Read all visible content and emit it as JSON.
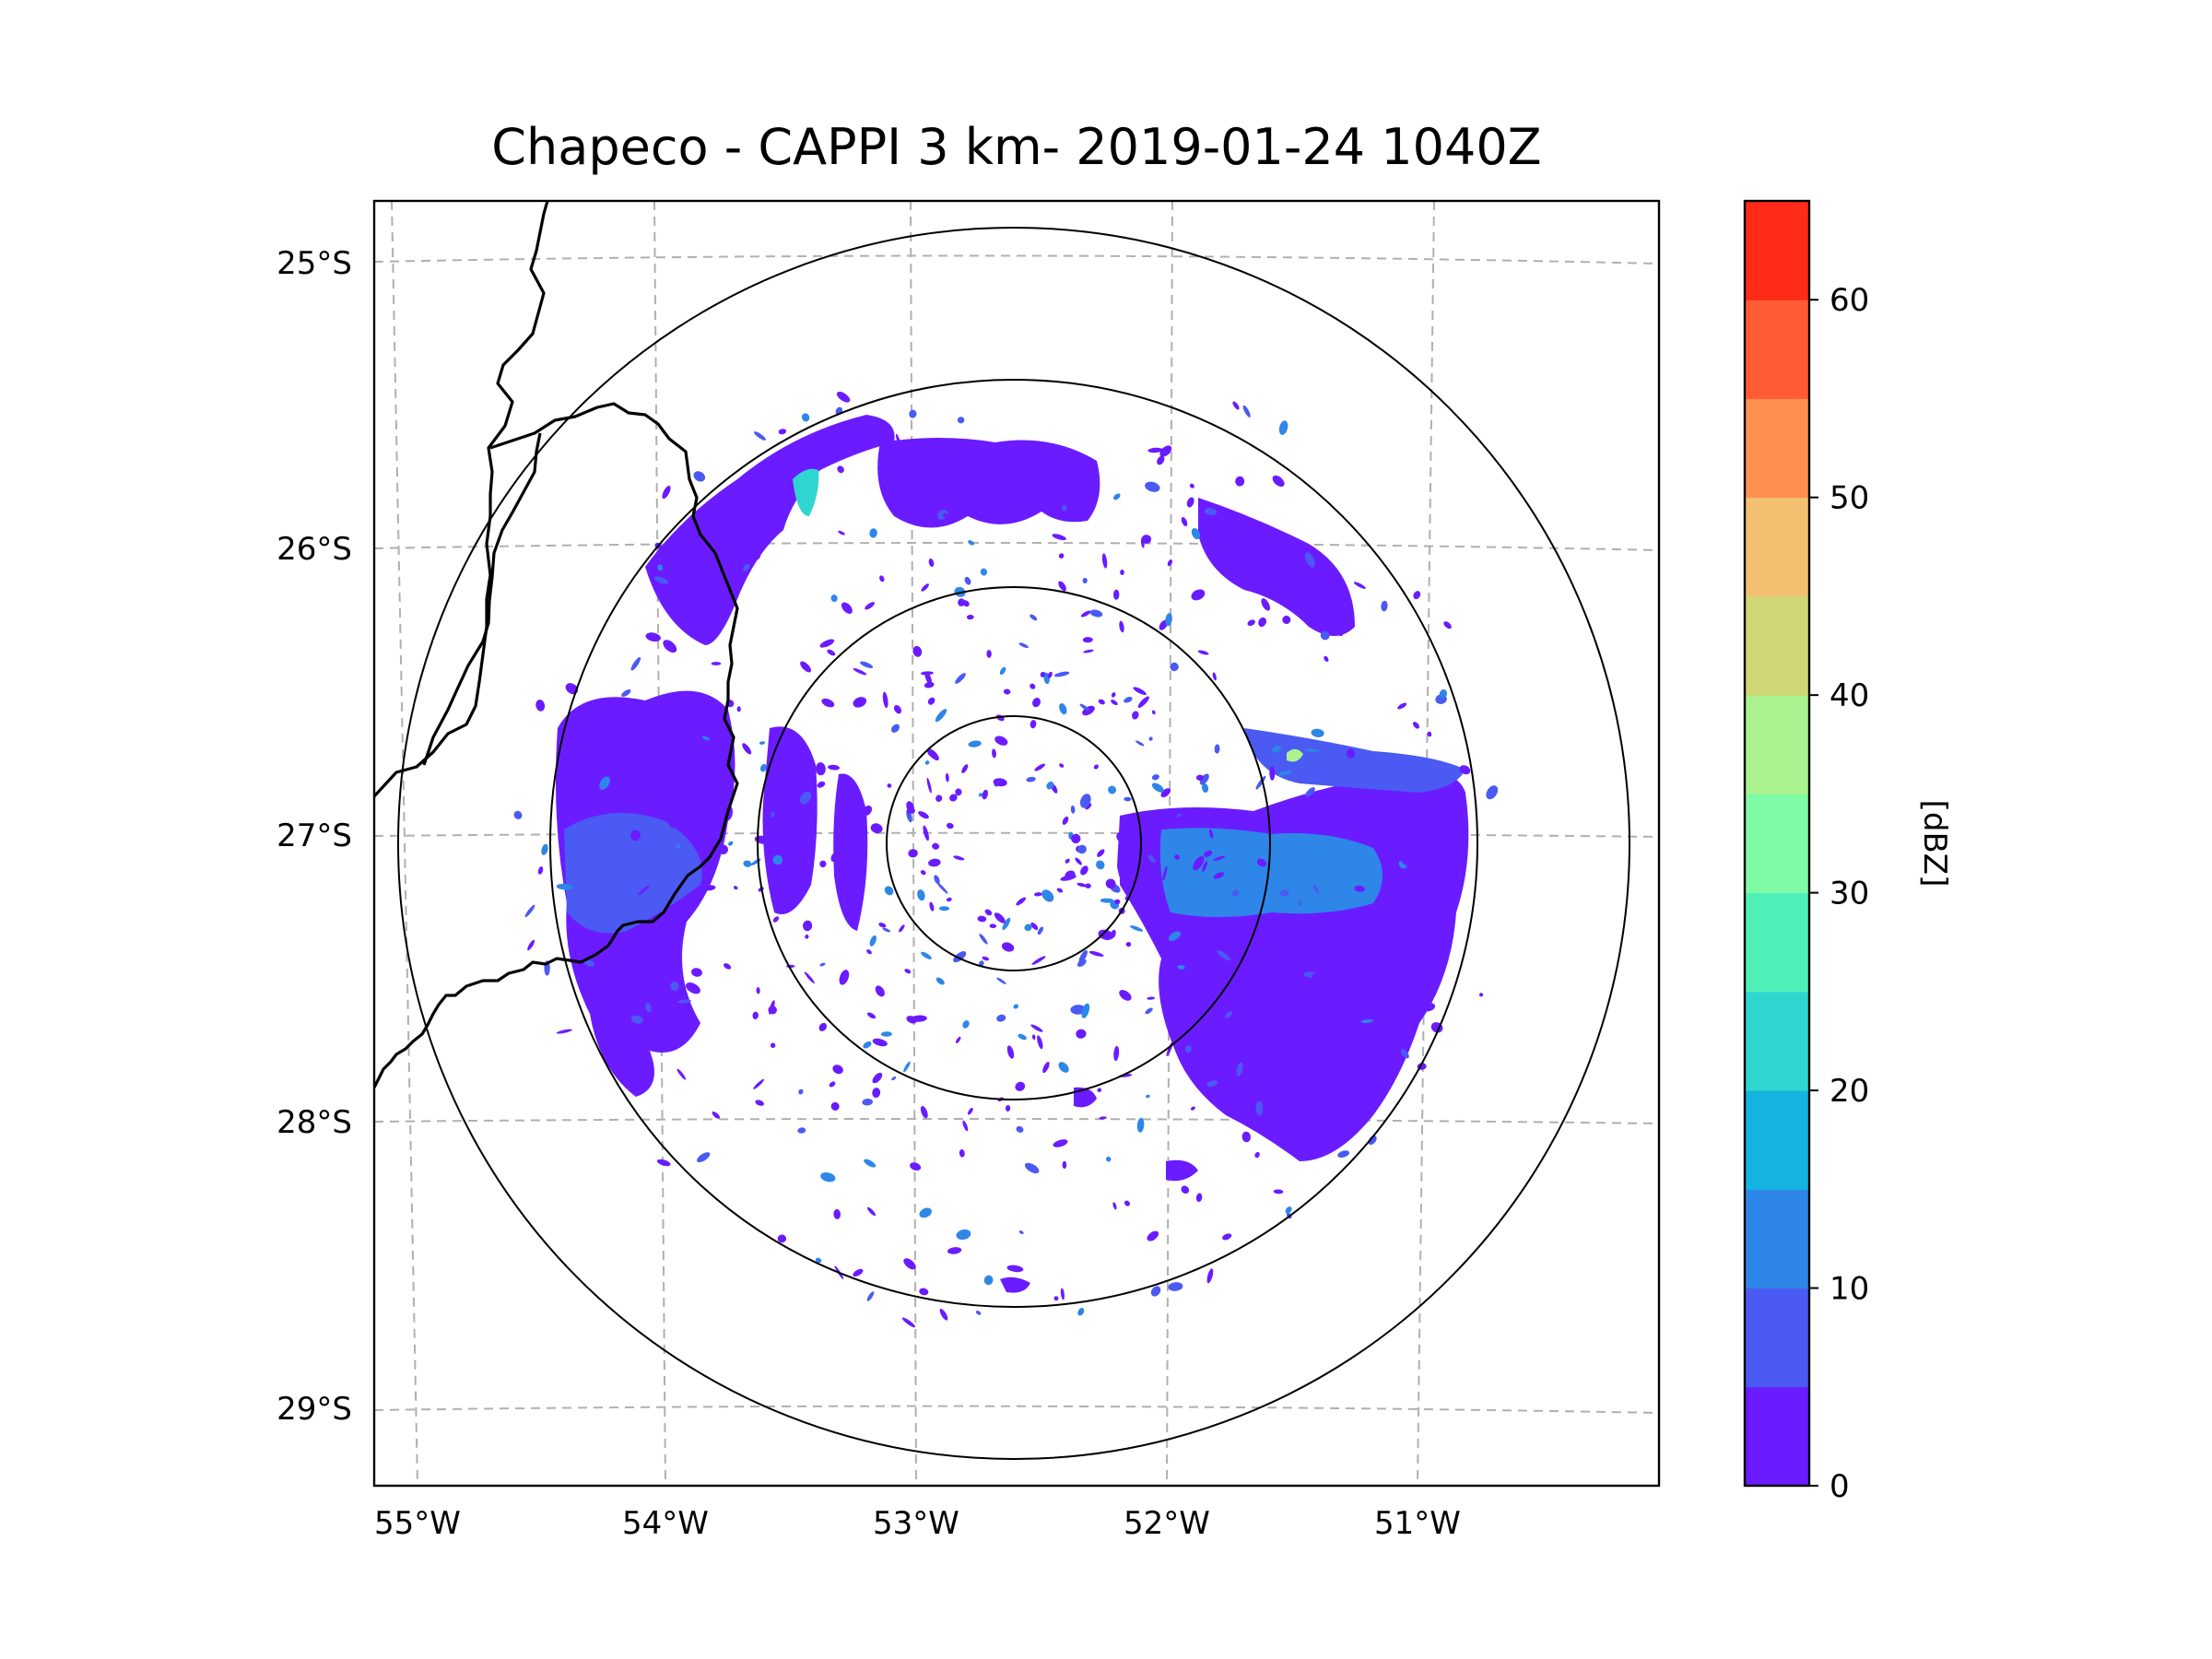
{
  "title": "Chapeco - CAPPI 3 km- 2019-01-24 1040Z",
  "map": {
    "lat_labels": [
      "25°S",
      "26°S",
      "27°S",
      "28°S",
      "29°S"
    ],
    "lon_labels": [
      "55°W",
      "54°W",
      "53°W",
      "52°W",
      "51°W"
    ],
    "radar_site": "Chapeco",
    "product": "CAPPI 3 km",
    "range_rings": 4
  },
  "colorbar": {
    "label": "[dBZ]",
    "ticks": [
      "0",
      "10",
      "20",
      "30",
      "40",
      "50",
      "60"
    ],
    "min": 0,
    "max": 65,
    "step": 5,
    "colors": [
      "#6b1bff",
      "#4a5af2",
      "#2e86e8",
      "#15b3e0",
      "#2fd6d0",
      "#4ff0b8",
      "#7efaa5",
      "#a9f28e",
      "#cfd676",
      "#f2c070",
      "#ff9050",
      "#ff5c36",
      "#ff2a18"
    ]
  }
}
